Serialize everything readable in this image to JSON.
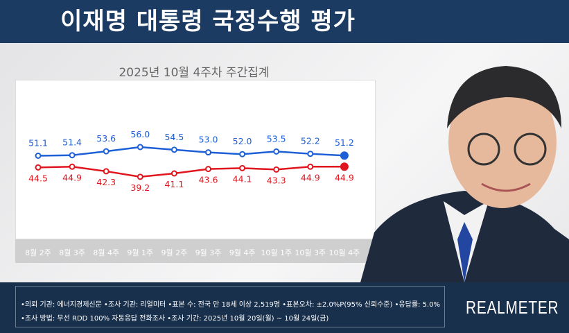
{
  "header": {
    "title": "이재명 대통령 국정수행 평가"
  },
  "chart_data": {
    "type": "line",
    "title": "2025년 10월 4주차 주간집계",
    "categories": [
      "8월 2주",
      "8월 3주",
      "8월 4주",
      "9월 1주",
      "9월 2주",
      "9월 3주",
      "9월 4주",
      "10월 1주",
      "10월 3주",
      "10월 4주"
    ],
    "series": [
      {
        "values": [
          51.1,
          51.4,
          53.6,
          56.0,
          54.5,
          53.0,
          52.0,
          53.5,
          52.2,
          51.2
        ],
        "color": "#1c5fd6"
      },
      {
        "values": [
          44.5,
          44.9,
          42.3,
          39.2,
          41.1,
          43.6,
          44.1,
          43.3,
          44.9,
          44.9
        ],
        "color": "#e0151d"
      }
    ],
    "grid": false
  },
  "footer": {
    "line1": "•의뢰 기관: 에너지경제신문 •조사 기관: 리얼미터 •표본 수: 전국 만 18세 이상 2,519명 •표본오차: ±2.0%P(95% 신뢰수준) •응답률: 5.0%",
    "line2": "•조사 방법: 무선 RDD 100% 자동응답 전화조사 •조사 기간: 2025년 10월 20일(월) ~ 10월 24일(금)",
    "logo": "REALMETER"
  }
}
